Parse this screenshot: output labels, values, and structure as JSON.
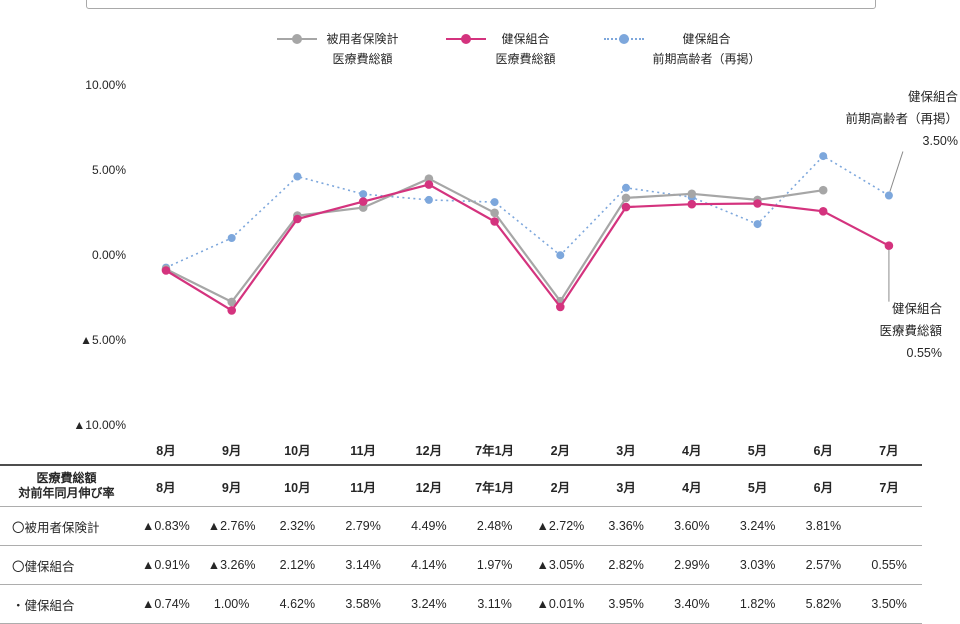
{
  "legend": {
    "items": [
      {
        "label_line1": "被用者保険計",
        "label_line2": "医療費総額",
        "color": "#a6a6a6",
        "style": "solid"
      },
      {
        "label_line1": "健保組合",
        "label_line2": "医療費総額",
        "color": "#d4337e",
        "style": "solid"
      },
      {
        "label_line1": "健保組合",
        "label_line2": "前期高齢者（再掲）",
        "color": "#7da7dc",
        "style": "dotted"
      }
    ]
  },
  "chart_data": {
    "type": "line",
    "categories": [
      "8月",
      "9月",
      "10月",
      "11月",
      "12月",
      "7年1月",
      "2月",
      "3月",
      "4月",
      "5月",
      "6月",
      "7月"
    ],
    "y_axis": {
      "tick_labels": [
        "10.00%",
        "5.00%",
        "0.00%",
        "▲5.00%",
        "▲10.00%"
      ],
      "tick_values": [
        10,
        5,
        0,
        -5,
        -10
      ],
      "min": -10,
      "max": 10
    },
    "series": [
      {
        "name": "被用者保険計 医療費総額",
        "color": "#a6a6a6",
        "style": "solid",
        "values": [
          -0.83,
          -2.76,
          2.32,
          2.79,
          4.49,
          2.48,
          -2.72,
          3.36,
          3.6,
          3.24,
          3.81,
          null
        ]
      },
      {
        "name": "健保組合 医療費総額",
        "color": "#d4337e",
        "style": "solid",
        "values": [
          -0.91,
          -3.26,
          2.12,
          3.14,
          4.14,
          1.97,
          -3.05,
          2.82,
          2.99,
          3.03,
          2.57,
          0.55
        ]
      },
      {
        "name": "健保組合 前期高齢者（再掲）",
        "color": "#7da7dc",
        "style": "dotted",
        "values": [
          -0.74,
          1.0,
          4.62,
          3.58,
          3.24,
          3.11,
          -0.01,
          3.95,
          3.4,
          1.82,
          5.82,
          3.5
        ]
      }
    ],
    "annotations": [
      {
        "lines": [
          "健保組合",
          "前期高齢者（再掲）",
          "3.50%"
        ],
        "target_series": 2,
        "target_index": 11,
        "position": "top-right"
      },
      {
        "lines": [
          "健保組合",
          "医療費総額",
          "0.55%"
        ],
        "target_series": 1,
        "target_index": 11,
        "position": "bottom-right"
      }
    ],
    "grid": "off",
    "legend_position": "top"
  },
  "table": {
    "header_label_line1": "医療費総額",
    "header_label_line2": "対前年同月伸び率",
    "columns": [
      "8月",
      "9月",
      "10月",
      "11月",
      "12月",
      "7年1月",
      "2月",
      "3月",
      "4月",
      "5月",
      "6月",
      "7月"
    ],
    "rows": [
      {
        "label": "〇被用者保険計",
        "values": [
          "▲0.83%",
          "▲2.76%",
          "2.32%",
          "2.79%",
          "4.49%",
          "2.48%",
          "▲2.72%",
          "3.36%",
          "3.60%",
          "3.24%",
          "3.81%",
          ""
        ]
      },
      {
        "label": "〇健保組合",
        "values": [
          "▲0.91%",
          "▲3.26%",
          "2.12%",
          "3.14%",
          "4.14%",
          "1.97%",
          "▲3.05%",
          "2.82%",
          "2.99%",
          "3.03%",
          "2.57%",
          "0.55%"
        ]
      },
      {
        "label": "・健保組合",
        "values": [
          "▲0.74%",
          "1.00%",
          "4.62%",
          "3.58%",
          "3.24%",
          "3.11%",
          "▲0.01%",
          "3.95%",
          "3.40%",
          "1.82%",
          "5.82%",
          "3.50%"
        ]
      }
    ]
  }
}
